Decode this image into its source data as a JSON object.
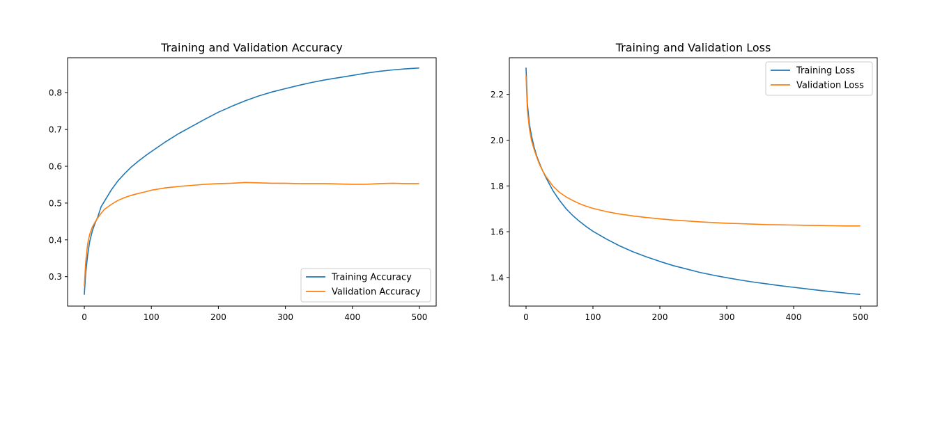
{
  "chart_data": [
    {
      "type": "line",
      "title": "Training and Validation Accuracy",
      "xlabel": "",
      "ylabel": "",
      "xlim": [
        -25,
        525
      ],
      "ylim": [
        0.22,
        0.895
      ],
      "xticks": [
        0,
        100,
        200,
        300,
        400,
        500
      ],
      "yticks": [
        0.3,
        0.4,
        0.5,
        0.6,
        0.7,
        0.8
      ],
      "grid": false,
      "legend_position": "lower-right",
      "series": [
        {
          "name": "Training Accuracy",
          "color": "#1f77b4",
          "x": [
            0,
            2,
            5,
            8,
            12,
            16,
            20,
            25,
            30,
            40,
            50,
            60,
            70,
            80,
            90,
            100,
            120,
            140,
            160,
            180,
            200,
            220,
            240,
            260,
            280,
            300,
            320,
            340,
            360,
            380,
            400,
            420,
            440,
            460,
            480,
            499
          ],
          "y": [
            0.252,
            0.31,
            0.36,
            0.395,
            0.425,
            0.445,
            0.462,
            0.49,
            0.505,
            0.535,
            0.56,
            0.58,
            0.598,
            0.613,
            0.627,
            0.64,
            0.665,
            0.688,
            0.708,
            0.728,
            0.747,
            0.763,
            0.778,
            0.791,
            0.802,
            0.811,
            0.82,
            0.828,
            0.835,
            0.841,
            0.847,
            0.853,
            0.858,
            0.862,
            0.865,
            0.867
          ]
        },
        {
          "name": "Validation Accuracy",
          "color": "#ff7f0e",
          "x": [
            0,
            2,
            5,
            8,
            12,
            16,
            20,
            25,
            30,
            40,
            50,
            60,
            70,
            80,
            90,
            100,
            120,
            140,
            160,
            180,
            200,
            220,
            240,
            260,
            280,
            300,
            320,
            340,
            360,
            380,
            400,
            420,
            440,
            460,
            480,
            499
          ],
          "y": [
            0.275,
            0.34,
            0.39,
            0.415,
            0.435,
            0.448,
            0.46,
            0.472,
            0.483,
            0.496,
            0.507,
            0.515,
            0.521,
            0.526,
            0.53,
            0.535,
            0.541,
            0.545,
            0.548,
            0.551,
            0.553,
            0.554,
            0.556,
            0.555,
            0.554,
            0.554,
            0.553,
            0.553,
            0.553,
            0.552,
            0.551,
            0.551,
            0.553,
            0.554,
            0.553,
            0.553
          ]
        }
      ]
    },
    {
      "type": "line",
      "title": "Training and Validation Loss",
      "xlabel": "",
      "ylabel": "",
      "xlim": [
        -25,
        525
      ],
      "ylim": [
        1.275,
        2.36
      ],
      "xticks": [
        0,
        100,
        200,
        300,
        400,
        500
      ],
      "yticks": [
        1.4,
        1.6,
        1.8,
        2.0,
        2.2
      ],
      "grid": false,
      "legend_position": "upper-right",
      "series": [
        {
          "name": "Training Loss",
          "color": "#1f77b4",
          "x": [
            0,
            2,
            5,
            8,
            12,
            16,
            20,
            25,
            30,
            40,
            50,
            60,
            70,
            80,
            90,
            100,
            120,
            140,
            160,
            180,
            200,
            220,
            240,
            260,
            280,
            300,
            320,
            340,
            360,
            380,
            400,
            420,
            440,
            460,
            480,
            499
          ],
          "y": [
            2.315,
            2.16,
            2.07,
            2.02,
            1.97,
            1.93,
            1.9,
            1.865,
            1.835,
            1.78,
            1.737,
            1.7,
            1.67,
            1.645,
            1.622,
            1.602,
            1.568,
            1.538,
            1.512,
            1.49,
            1.47,
            1.452,
            1.437,
            1.422,
            1.41,
            1.399,
            1.389,
            1.38,
            1.372,
            1.364,
            1.357,
            1.35,
            1.343,
            1.337,
            1.331,
            1.326
          ]
        },
        {
          "name": "Validation Loss",
          "color": "#ff7f0e",
          "x": [
            0,
            2,
            5,
            8,
            12,
            16,
            20,
            25,
            30,
            40,
            50,
            60,
            70,
            80,
            90,
            100,
            120,
            140,
            160,
            180,
            200,
            220,
            240,
            260,
            280,
            300,
            320,
            340,
            360,
            380,
            400,
            420,
            440,
            460,
            480,
            499
          ],
          "y": [
            2.28,
            2.13,
            2.05,
            2.0,
            1.96,
            1.925,
            1.895,
            1.865,
            1.84,
            1.8,
            1.772,
            1.752,
            1.736,
            1.722,
            1.711,
            1.702,
            1.688,
            1.677,
            1.669,
            1.662,
            1.656,
            1.651,
            1.647,
            1.643,
            1.64,
            1.637,
            1.635,
            1.633,
            1.631,
            1.63,
            1.629,
            1.628,
            1.627,
            1.626,
            1.625,
            1.625
          ]
        }
      ]
    }
  ]
}
